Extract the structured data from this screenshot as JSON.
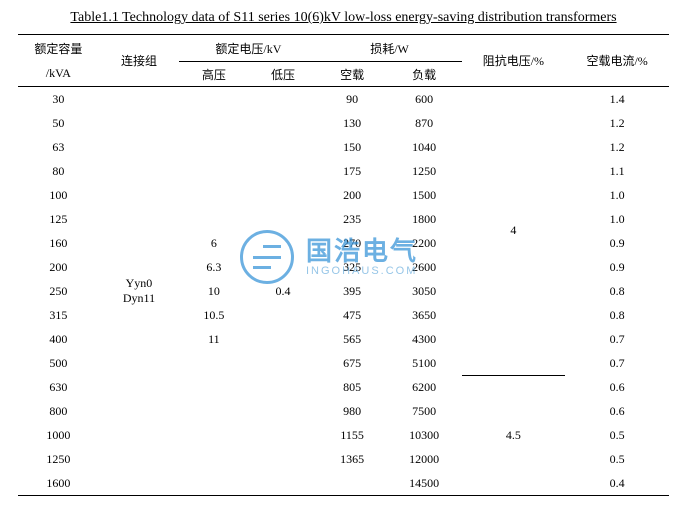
{
  "title": "Table1.1 Technology data of S11 series 10(6)kV low-loss energy-saving distribution transformers",
  "headers": {
    "cap1": "额定容量",
    "cap2": "/kVA",
    "conn": "连接组",
    "volt": "额定电压/kV",
    "hv": "高压",
    "lv": "低压",
    "loss": "损耗/W",
    "noload": "空载",
    "load": "负载",
    "imp": "阻抗电压/%",
    "i0": "空载电流/%"
  },
  "conn_group": "Yyn0\nDyn11",
  "hv_list": [
    "6",
    "6.3",
    "10",
    "10.5",
    "11"
  ],
  "lv_val": "0.4",
  "rows": [
    {
      "cap": "30",
      "nl": "90",
      "ld": "600",
      "i0": "1.4"
    },
    {
      "cap": "50",
      "nl": "130",
      "ld": "870",
      "i0": "1.2"
    },
    {
      "cap": "63",
      "nl": "150",
      "ld": "1040",
      "i0": "1.2"
    },
    {
      "cap": "80",
      "nl": "175",
      "ld": "1250",
      "i0": "1.1"
    },
    {
      "cap": "100",
      "nl": "200",
      "ld": "1500",
      "i0": "1.0"
    },
    {
      "cap": "125",
      "nl": "235",
      "ld": "1800",
      "i0": "1.0"
    },
    {
      "cap": "160",
      "nl": "270",
      "ld": "2200",
      "i0": "0.9"
    },
    {
      "cap": "200",
      "nl": "325",
      "ld": "2600",
      "i0": "0.9"
    },
    {
      "cap": "250",
      "nl": "395",
      "ld": "3050",
      "i0": "0.8"
    },
    {
      "cap": "315",
      "nl": "475",
      "ld": "3650",
      "i0": "0.8"
    },
    {
      "cap": "400",
      "nl": "565",
      "ld": "4300",
      "i0": "0.7"
    },
    {
      "cap": "500",
      "nl": "675",
      "ld": "5100",
      "i0": "0.7"
    },
    {
      "cap": "630",
      "nl": "805",
      "ld": "6200",
      "i0": "0.6"
    },
    {
      "cap": "800",
      "nl": "980",
      "ld": "7500",
      "i0": "0.6"
    },
    {
      "cap": "1000",
      "nl": "1155",
      "ld": "10300",
      "i0": "0.5"
    },
    {
      "cap": "1250",
      "nl": "1365",
      "ld": "12000",
      "i0": "0.5"
    },
    {
      "cap": "1600",
      "nl": "",
      "ld": "14500",
      "i0": "0.4"
    }
  ],
  "imp_block1": "4",
  "imp_block2": "4.5",
  "watermark": {
    "cn": "国浩电气",
    "en": "INGOHAUS.COM"
  },
  "colors": {
    "text": "#000000",
    "bg": "#ffffff",
    "brand": "#2f8fd6"
  }
}
